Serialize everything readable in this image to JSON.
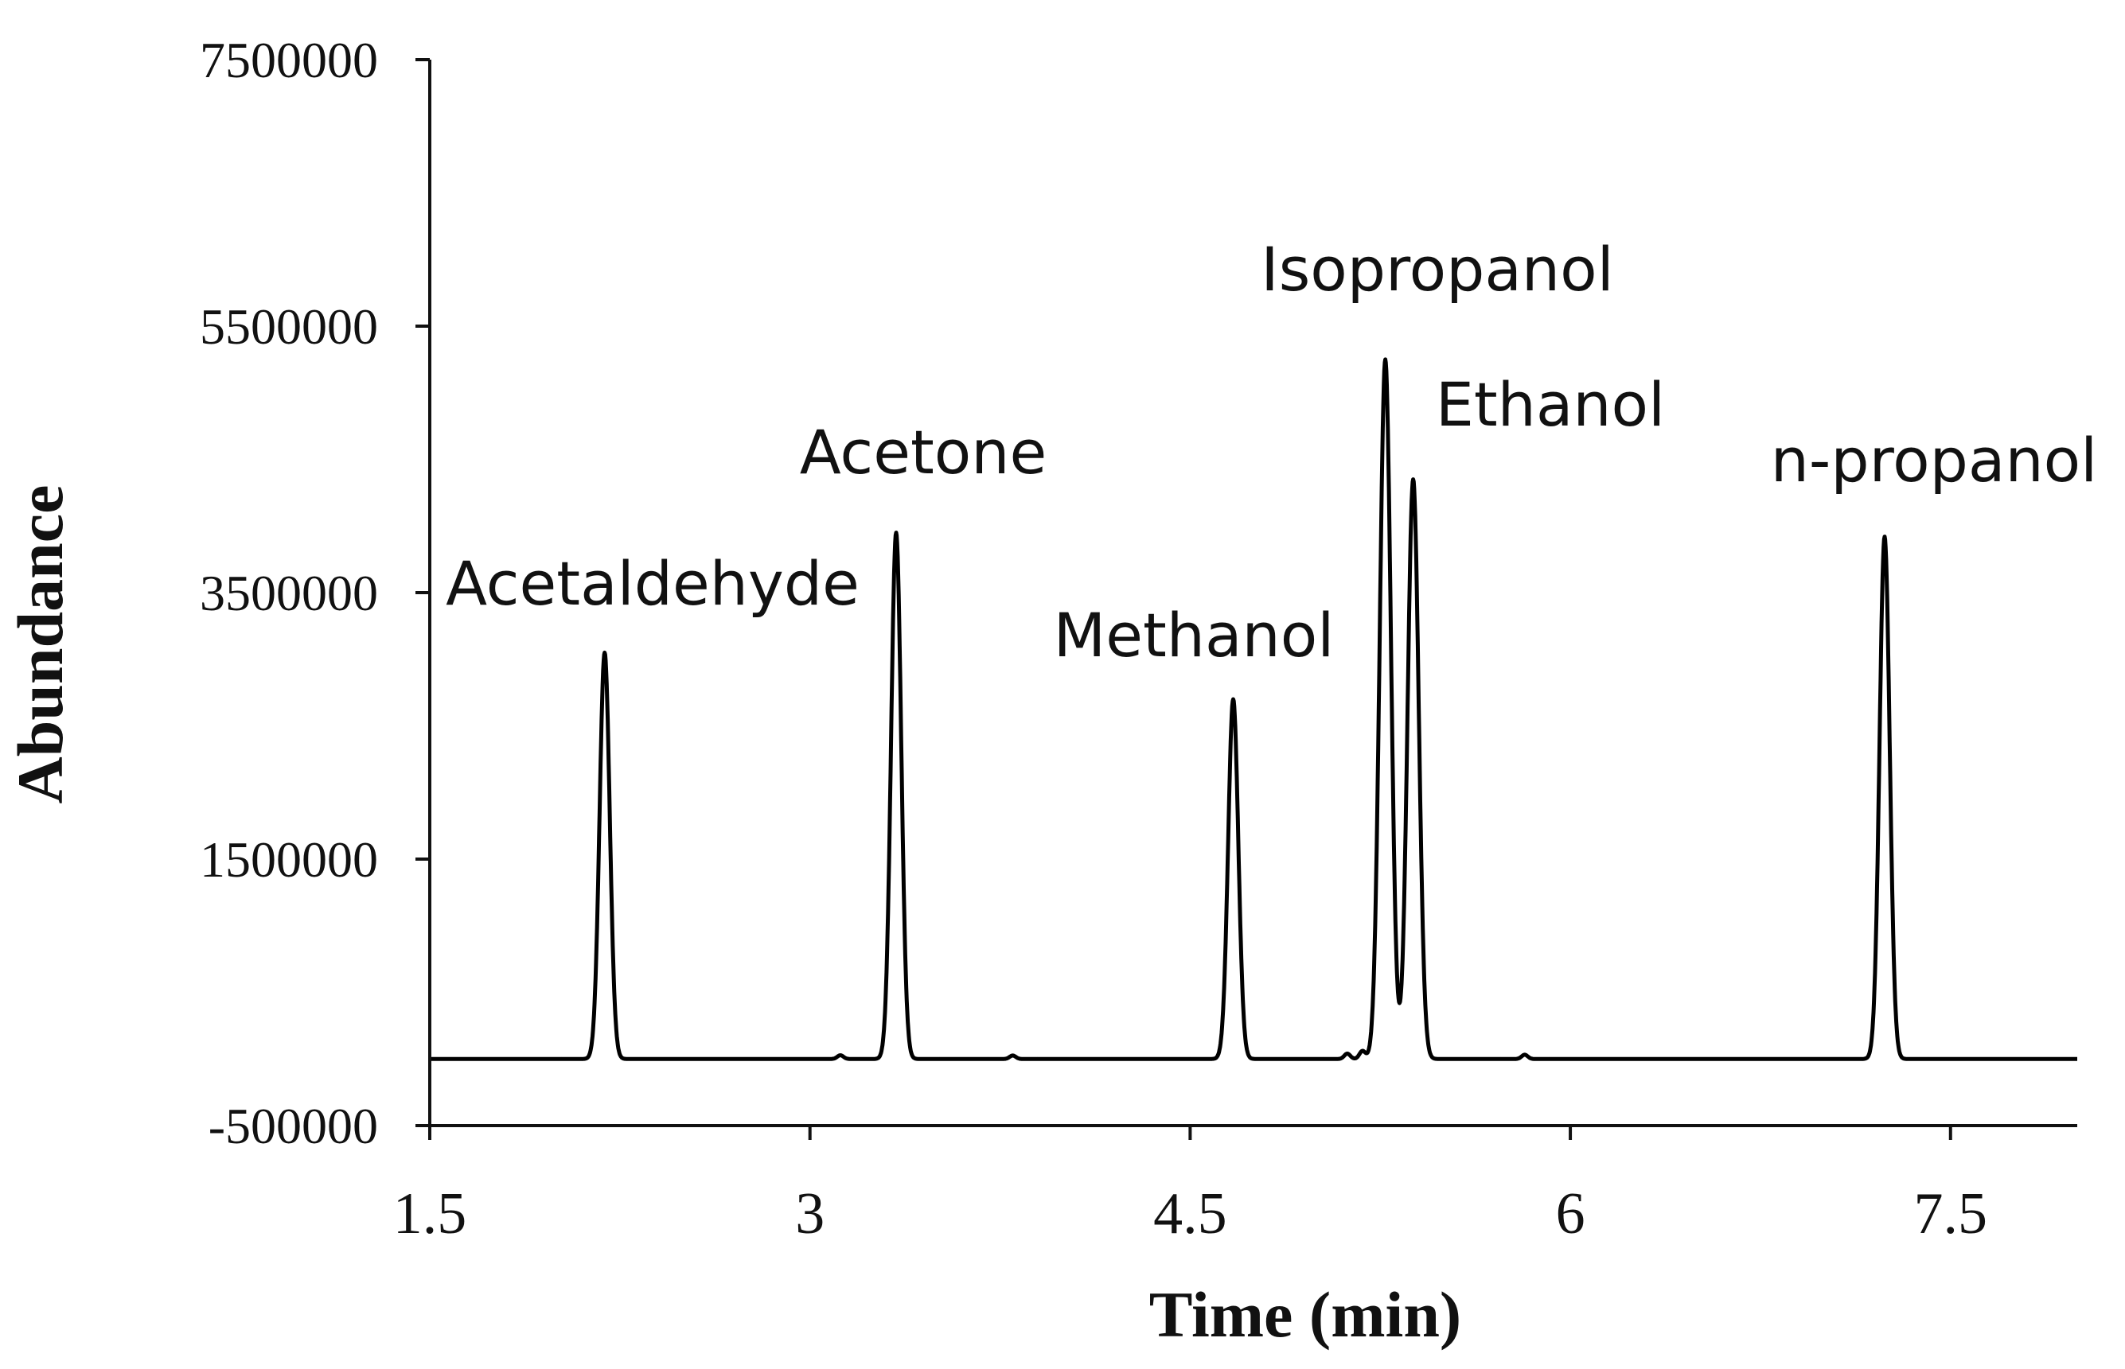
{
  "chart_data": {
    "type": "line",
    "title": "",
    "xlabel": "Time (min)",
    "ylabel": "Abundance",
    "xlim": [
      1.5,
      8.0
    ],
    "ylim": [
      -500000,
      7500000
    ],
    "xticks": [
      1.5,
      3,
      4.5,
      6,
      7.5
    ],
    "xtick_labels": [
      "1.5",
      "3",
      "4.5",
      "6",
      "7.5"
    ],
    "yticks": [
      -500000,
      1500000,
      3500000,
      5500000,
      7500000
    ],
    "ytick_labels": [
      "-500000",
      "1500000",
      "3500000",
      "5500000",
      "7500000"
    ],
    "baseline": 0,
    "grid": false,
    "line_color": "#000000",
    "peaks": [
      {
        "name": "Acetaldehyde",
        "x": 2.19,
        "y": 3050000
      },
      {
        "name": "Acetone",
        "x": 3.34,
        "y": 3950000
      },
      {
        "name": "Methanol",
        "x": 4.67,
        "y": 2700000
      },
      {
        "name": "Isopropanol",
        "x": 5.27,
        "y": 5250000
      },
      {
        "name": "Ethanol",
        "x": 5.38,
        "y": 4350000
      },
      {
        "name": "n-propanol",
        "x": 7.24,
        "y": 3920000
      }
    ],
    "trace_dip": {
      "x": 5.33,
      "y": 320000
    }
  }
}
